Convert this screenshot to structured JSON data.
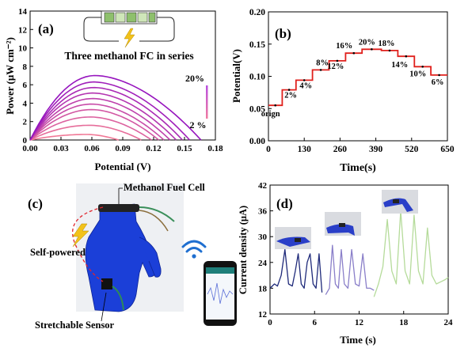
{
  "chart_data": [
    {
      "panel": "(a)",
      "type": "line",
      "inset_title": "Three methanol FC in series",
      "xlabel": "Potential (V)",
      "ylabel": "Power (μW cm⁻²)",
      "xlim": [
        0,
        0.18
      ],
      "ylim": [
        0,
        14
      ],
      "xticks": [
        "0.00",
        "0.03",
        "0.06",
        "0.09",
        "0.12",
        "0.15",
        "0.18"
      ],
      "yticks": [
        "0",
        "2",
        "4",
        "6",
        "8",
        "10",
        "12",
        "14"
      ],
      "legend_high": "20%",
      "legend_low": "2 %",
      "series": [
        {
          "peak_x": 0.055,
          "peak_y": 0.6,
          "xmax": 0.086
        },
        {
          "peak_x": 0.058,
          "peak_y": 1.6,
          "xmax": 0.108
        },
        {
          "peak_x": 0.059,
          "peak_y": 2.5,
          "xmax": 0.118
        },
        {
          "peak_x": 0.06,
          "peak_y": 3.3,
          "xmax": 0.125
        },
        {
          "peak_x": 0.06,
          "peak_y": 3.9,
          "xmax": 0.13
        },
        {
          "peak_x": 0.061,
          "peak_y": 4.5,
          "xmax": 0.136
        },
        {
          "peak_x": 0.061,
          "peak_y": 5.1,
          "xmax": 0.142
        },
        {
          "peak_x": 0.062,
          "peak_y": 5.7,
          "xmax": 0.148
        },
        {
          "peak_x": 0.062,
          "peak_y": 6.3,
          "xmax": 0.155
        },
        {
          "peak_x": 0.063,
          "peak_y": 7.0,
          "xmax": 0.166
        }
      ]
    },
    {
      "panel": "(b)",
      "type": "line",
      "xlabel": "Time(s)",
      "ylabel": "Potential(V)",
      "xlim": [
        0,
        650
      ],
      "ylim": [
        0,
        0.2
      ],
      "xticks": [
        "0",
        "130",
        "260",
        "390",
        "520",
        "650"
      ],
      "yticks": [
        "0.00",
        "0.05",
        "0.10",
        "0.15",
        "0.20"
      ],
      "steps": [
        {
          "t0": 0,
          "t1": 50,
          "v": 0.055,
          "label": "orign"
        },
        {
          "t0": 50,
          "t1": 100,
          "v": 0.079,
          "label": "2%"
        },
        {
          "t0": 100,
          "t1": 160,
          "v": 0.094,
          "label": "4%"
        },
        {
          "t0": 160,
          "t1": 220,
          "v": 0.11,
          "label": "8%"
        },
        {
          "t0": 220,
          "t1": 280,
          "v": 0.124,
          "label": "12%"
        },
        {
          "t0": 280,
          "t1": 340,
          "v": 0.136,
          "label": "16%"
        },
        {
          "t0": 340,
          "t1": 410,
          "v": 0.142,
          "label": "20%"
        },
        {
          "t0": 410,
          "t1": 470,
          "v": 0.14,
          "label": "18%"
        },
        {
          "t0": 470,
          "t1": 530,
          "v": 0.131,
          "label": "14%"
        },
        {
          "t0": 530,
          "t1": 590,
          "v": 0.115,
          "label": "10%"
        },
        {
          "t0": 590,
          "t1": 650,
          "v": 0.102,
          "label": "6%"
        }
      ]
    },
    {
      "panel": "(d)",
      "type": "line",
      "xlabel": "Time (s)",
      "ylabel": "Current density (μA)",
      "xlim": [
        0,
        24
      ],
      "ylim": [
        12,
        42
      ],
      "xticks": [
        "0",
        "6",
        "12",
        "18",
        "24"
      ],
      "yticks": [
        "12",
        "18",
        "24",
        "30",
        "36",
        "42"
      ],
      "series": [
        {
          "color": "#1f2a7a",
          "x": [
            0,
            0.6,
            1,
            1.5,
            2,
            2.5,
            3,
            3.4,
            3.8,
            4.2,
            4.6,
            5,
            5.4,
            5.8,
            6.2,
            6.6,
            7
          ],
          "y": [
            18,
            19,
            18.5,
            21,
            27,
            19,
            18.5,
            22,
            26,
            19,
            18,
            24,
            26,
            19,
            18,
            26,
            17
          ]
        },
        {
          "color": "#8a7fc9",
          "x": [
            7.5,
            8,
            8.4,
            8.8,
            9.2,
            9.6,
            10,
            10.5,
            11,
            11.5,
            12,
            12.5,
            13,
            13.5,
            14
          ],
          "y": [
            16.5,
            18,
            28,
            19,
            18,
            27,
            19,
            18,
            27,
            19,
            18.5,
            26,
            18,
            18,
            17.5
          ]
        },
        {
          "color": "#b5db9a",
          "x": [
            14,
            14.6,
            15.2,
            15.8,
            16.4,
            17,
            17.6,
            18.2,
            18.8,
            19.4,
            20,
            20.6,
            21.2,
            21.8,
            22.4,
            23,
            23.6,
            24
          ],
          "y": [
            16,
            19,
            23,
            34,
            22,
            19,
            36,
            22,
            19,
            35,
            22,
            19,
            32,
            21,
            19,
            19.5,
            20,
            20.5
          ]
        }
      ]
    }
  ],
  "panel_c": {
    "label": "(c)",
    "methanol_label": "Methanol Fuel Cell",
    "self_powered_label": "Self-powered",
    "sensor_label": "Stretchable Sensor"
  }
}
